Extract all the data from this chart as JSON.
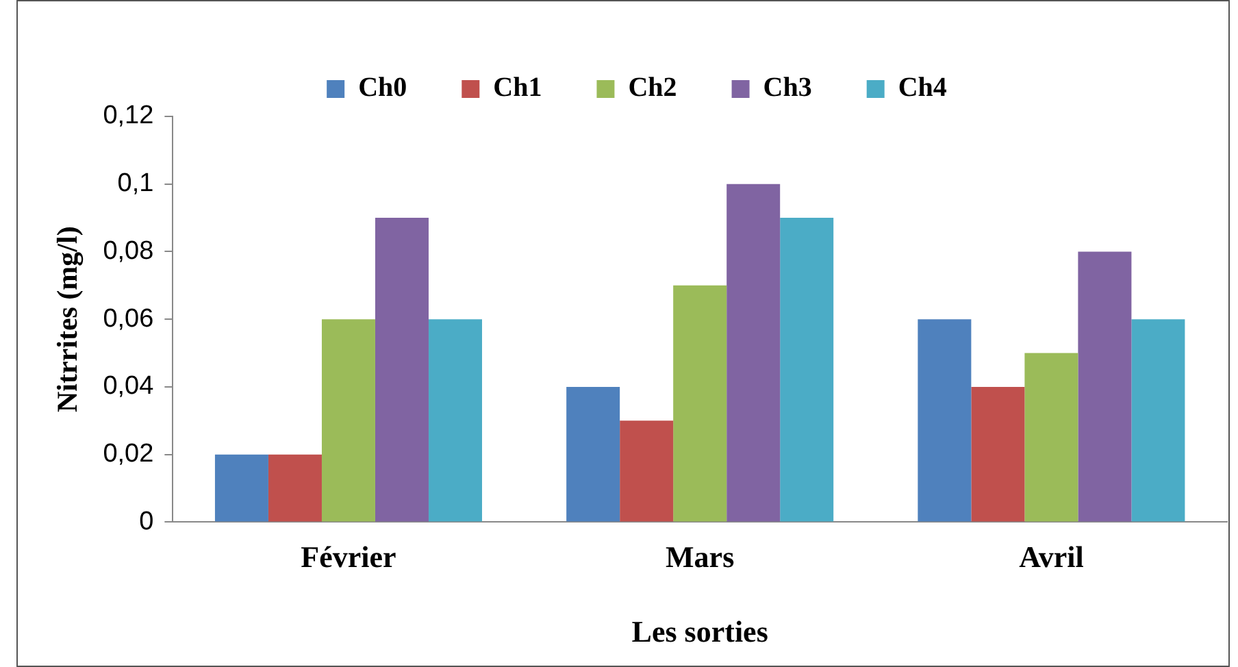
{
  "chart_data": {
    "type": "bar",
    "xlabel": "Les sorties",
    "ylabel": "Nitrrites (mg/l)",
    "categories": [
      "Février",
      "Mars",
      "Avril"
    ],
    "series": [
      {
        "name": "Ch0",
        "color": "#4f81bd",
        "values": [
          0.02,
          0.04,
          0.06
        ]
      },
      {
        "name": "Ch1",
        "color": "#c0504d",
        "values": [
          0.02,
          0.03,
          0.04
        ]
      },
      {
        "name": "Ch2",
        "color": "#9bbb59",
        "values": [
          0.06,
          0.07,
          0.05
        ]
      },
      {
        "name": "Ch3",
        "color": "#8064a2",
        "values": [
          0.09,
          0.1,
          0.08
        ]
      },
      {
        "name": "Ch4",
        "color": "#4bacc6",
        "values": [
          0.06,
          0.09,
          0.06
        ]
      }
    ],
    "ylim": [
      0,
      0.12
    ],
    "yticks": [
      0,
      {
        "value": 0.02,
        "label": "0,02"
      },
      {
        "value": 0.04,
        "label": "0,04"
      },
      {
        "value": 0.06,
        "label": "0,06"
      },
      {
        "value": 0.08,
        "label": "0,08"
      },
      {
        "value": 0.1,
        "label": "0,1"
      },
      {
        "value": 0.12,
        "label": "0,12"
      }
    ],
    "grid": false,
    "legend": "top"
  }
}
